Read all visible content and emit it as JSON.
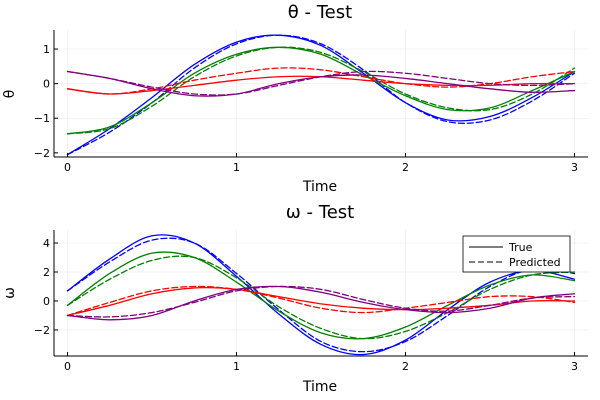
{
  "chart_data": [
    {
      "type": "line",
      "title": "θ - Test",
      "xlabel": "Time",
      "ylabel": "θ",
      "xlim": [
        -0.08,
        3.08
      ],
      "ylim": [
        -2.12,
        1.55
      ],
      "xticks": [
        0,
        1,
        2,
        3
      ],
      "yticks": [
        -2,
        -1,
        0,
        1
      ],
      "xtick_labels": [
        "0",
        "1",
        "2",
        "3"
      ],
      "ytick_labels": [
        "−2",
        "−1",
        "0",
        "1"
      ],
      "grid": true,
      "x": [
        0,
        0.25,
        0.5,
        0.75,
        1.0,
        1.25,
        1.5,
        1.75,
        2.0,
        2.25,
        2.5,
        2.75,
        3.0
      ],
      "series": [
        {
          "color": "#0000ff",
          "style": "solid",
          "values": [
            -2.05,
            -1.3,
            -0.4,
            0.55,
            1.2,
            1.4,
            1.1,
            0.3,
            -0.55,
            -1.05,
            -0.95,
            -0.4,
            0.35
          ]
        },
        {
          "color": "#0000ff",
          "style": "dashed",
          "values": [
            -2.05,
            -1.4,
            -0.55,
            0.45,
            1.15,
            1.4,
            1.15,
            0.4,
            -0.55,
            -1.1,
            -1.05,
            -0.5,
            0.3
          ]
        },
        {
          "color": "#008000",
          "style": "solid",
          "values": [
            -1.45,
            -1.25,
            -0.55,
            0.3,
            0.85,
            1.05,
            0.85,
            0.25,
            -0.35,
            -0.75,
            -0.7,
            -0.2,
            0.35
          ]
        },
        {
          "color": "#008000",
          "style": "dashed",
          "values": [
            -1.45,
            -1.3,
            -0.65,
            0.2,
            0.8,
            1.05,
            0.9,
            0.35,
            -0.3,
            -0.7,
            -0.75,
            -0.3,
            0.45
          ]
        },
        {
          "color": "#ff0000",
          "style": "solid",
          "values": [
            -0.15,
            -0.3,
            -0.2,
            -0.05,
            0.1,
            0.2,
            0.2,
            0.1,
            0.0,
            -0.05,
            -0.05,
            0.0,
            0.0
          ]
        },
        {
          "color": "#ff0000",
          "style": "dashed",
          "values": [
            -0.15,
            -0.3,
            -0.15,
            0.1,
            0.3,
            0.45,
            0.4,
            0.2,
            0.0,
            -0.1,
            0.0,
            0.2,
            0.35
          ]
        },
        {
          "color": "#800080",
          "style": "solid",
          "values": [
            0.35,
            0.15,
            -0.15,
            -0.35,
            -0.3,
            0.0,
            0.2,
            0.25,
            0.15,
            0.0,
            -0.15,
            -0.25,
            -0.2
          ]
        },
        {
          "color": "#800080",
          "style": "dashed",
          "values": [
            0.35,
            0.15,
            -0.1,
            -0.3,
            -0.3,
            -0.05,
            0.2,
            0.35,
            0.3,
            0.15,
            0.0,
            -0.05,
            0.0
          ]
        }
      ]
    },
    {
      "type": "line",
      "title": "ω - Test",
      "xlabel": "Time",
      "ylabel": "ω",
      "xlim": [
        -0.08,
        3.08
      ],
      "ylim": [
        -3.8,
        4.9
      ],
      "xticks": [
        0,
        1,
        2,
        3
      ],
      "yticks": [
        -2,
        0,
        2,
        4
      ],
      "xtick_labels": [
        "0",
        "1",
        "2",
        "3"
      ],
      "ytick_labels": [
        "−2",
        "0",
        "2",
        "4"
      ],
      "grid": true,
      "legend": {
        "position": "top-right",
        "entries": [
          {
            "label": "True",
            "style": "solid"
          },
          {
            "label": "Predicted",
            "style": "dashed"
          }
        ]
      },
      "x": [
        0,
        0.25,
        0.5,
        0.75,
        1.0,
        1.25,
        1.5,
        1.75,
        2.0,
        2.25,
        2.5,
        2.75,
        3.0
      ],
      "series": [
        {
          "color": "#0000ff",
          "style": "solid",
          "values": [
            0.7,
            2.9,
            4.5,
            4.0,
            1.7,
            -0.9,
            -3.0,
            -3.7,
            -2.7,
            -0.6,
            1.3,
            2.1,
            1.5
          ]
        },
        {
          "color": "#0000ff",
          "style": "dashed",
          "values": [
            0.7,
            2.7,
            4.2,
            4.0,
            1.9,
            -0.6,
            -2.8,
            -3.5,
            -2.8,
            -1.0,
            1.0,
            2.2,
            1.9
          ]
        },
        {
          "color": "#008000",
          "style": "solid",
          "values": [
            -0.3,
            1.9,
            3.3,
            3.0,
            1.3,
            -0.7,
            -2.2,
            -2.6,
            -1.8,
            -0.3,
            1.1,
            1.8,
            1.4
          ]
        },
        {
          "color": "#008000",
          "style": "dashed",
          "values": [
            -0.3,
            1.5,
            2.8,
            3.0,
            1.6,
            -0.4,
            -1.9,
            -2.6,
            -2.1,
            -0.8,
            0.8,
            1.8,
            2.0
          ]
        },
        {
          "color": "#ff0000",
          "style": "solid",
          "values": [
            -1.0,
            -0.3,
            0.5,
            0.9,
            0.8,
            0.3,
            -0.2,
            -0.5,
            -0.6,
            -0.5,
            -0.3,
            0.0,
            0.0
          ]
        },
        {
          "color": "#ff0000",
          "style": "dashed",
          "values": [
            -1.0,
            -0.1,
            0.7,
            1.0,
            0.8,
            0.2,
            -0.5,
            -0.8,
            -0.5,
            -0.1,
            0.3,
            0.3,
            -0.1
          ]
        },
        {
          "color": "#800080",
          "style": "solid",
          "values": [
            -1.0,
            -1.3,
            -1.0,
            0.0,
            0.8,
            1.0,
            0.6,
            -0.1,
            -0.6,
            -0.8,
            -0.5,
            0.2,
            0.5
          ]
        },
        {
          "color": "#800080",
          "style": "dashed",
          "values": [
            -1.0,
            -1.1,
            -0.8,
            -0.1,
            0.7,
            1.0,
            0.8,
            0.1,
            -0.5,
            -0.7,
            -0.3,
            0.2,
            0.3
          ]
        }
      ]
    }
  ]
}
